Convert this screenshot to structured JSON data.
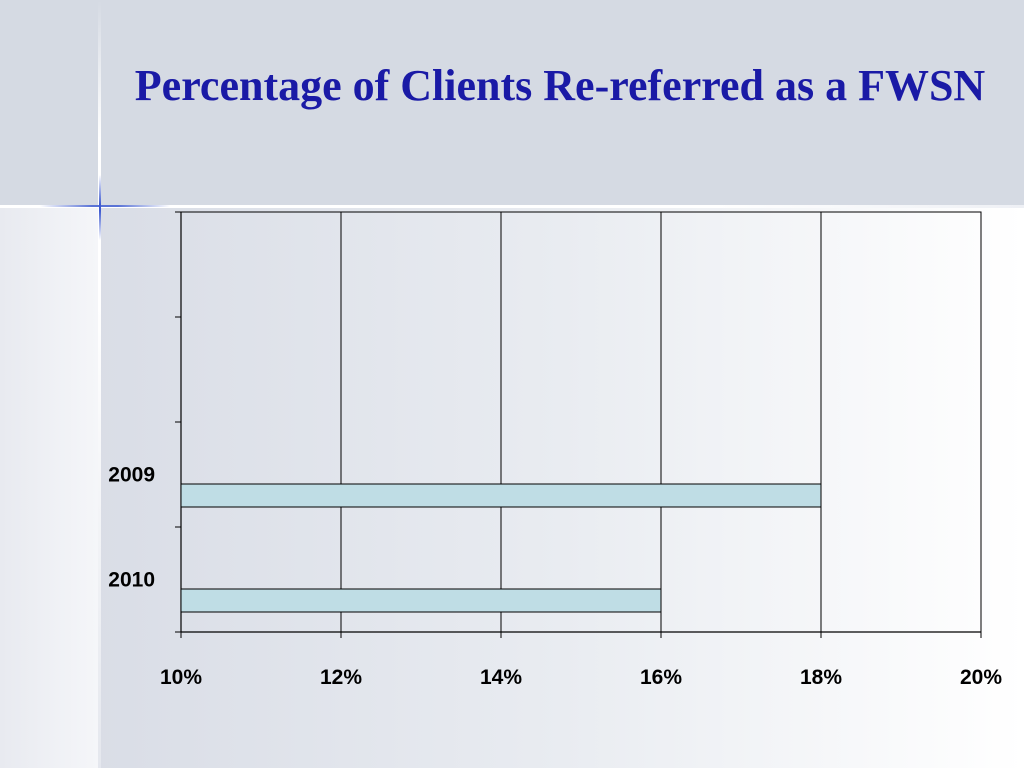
{
  "slide": {
    "title": "Percentage of Clients Re-referred as a FWSN"
  },
  "chart_data": {
    "type": "bar",
    "orientation": "horizontal",
    "categories": [
      "2009",
      "2010"
    ],
    "values": [
      0.18,
      0.16
    ],
    "xlim": [
      0.1,
      0.2
    ],
    "xticks": [
      "10%",
      "12%",
      "14%",
      "16%",
      "18%",
      "20%"
    ],
    "xtick_values": [
      0.1,
      0.12,
      0.14,
      0.16,
      0.18,
      0.2
    ],
    "bar_color": "#bfdde5",
    "grid": "vertical",
    "title": "",
    "xlabel": "",
    "ylabel": ""
  }
}
